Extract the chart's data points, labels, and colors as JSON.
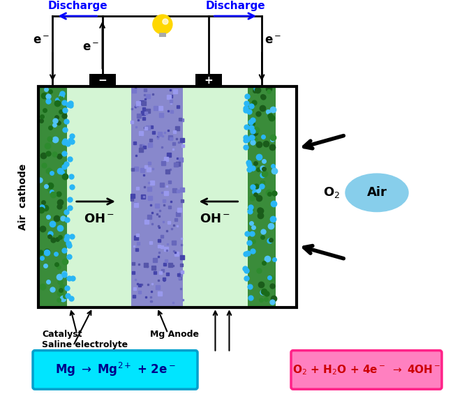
{
  "bg_color": "#ffffff",
  "left_cathode_color": "#2d7a2d",
  "electrolyte_color": "#d4f5d4",
  "anode_color": "#8080cc",
  "right_cathode_color": "#2d7a2d",
  "cyan_box_color": "#00e5ff",
  "cyan_edge_color": "#00bcd4",
  "pink_box_color": "#ff80c0",
  "pink_edge_color": "#ff4499",
  "discharge_color": "#0000ff",
  "black": "#000000",
  "white": "#ffffff",
  "gold": "#ffd700",
  "sky_blue": "#87ceeb",
  "o2_label": "O$_2$",
  "air_label": "Air",
  "oh_label": "OH$^-$",
  "discharge_label": "Discharge",
  "mg_reaction_tex": "Mg $\\rightarrow$ Mg$^{2+}$ + 2e$^-$",
  "o2_reaction_tex": "O$_2$ + H$_2$O + 4e$^-$ $\\rightarrow$ 4OH$^-$",
  "catalyst_label": "Catalyst",
  "saline_label": "Saline electrolyte",
  "mg_anode_label": "Mg Anode",
  "air_cathode_label": "Air  cathode",
  "em_label": "e$^-$",
  "minus_label": "-",
  "plus_label": "+"
}
